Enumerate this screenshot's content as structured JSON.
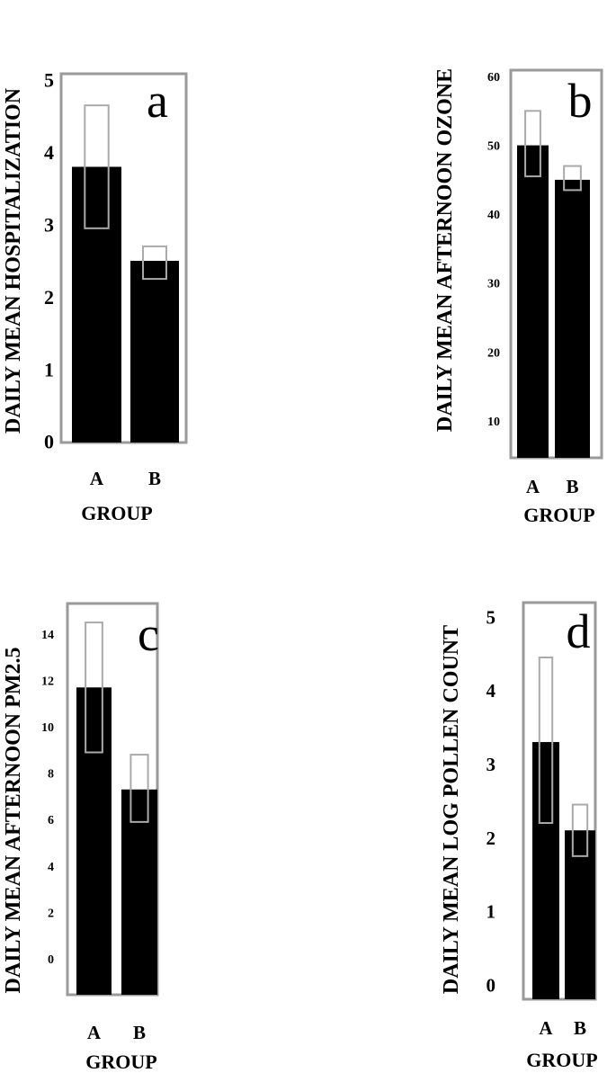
{
  "chart_data": [
    {
      "type": "bar",
      "panel_label": "a",
      "ylabel": "DAILY MEAN HOSPITALIZATION",
      "xlabel": "GROUP",
      "categories": [
        "A",
        "B"
      ],
      "values": [
        3.8,
        2.5
      ],
      "error_ranges": [
        [
          2.95,
          4.65
        ],
        [
          2.25,
          2.7
        ]
      ],
      "yticks": [
        "0",
        "1",
        "2",
        "3",
        "4",
        "5"
      ],
      "ylim": [
        0,
        5
      ]
    },
    {
      "type": "bar",
      "panel_label": "b",
      "ylabel": "DAILY MEAN AFTERNOON OZONE",
      "xlabel": "GROUP",
      "categories": [
        "A",
        "B"
      ],
      "values": [
        50,
        45
      ],
      "error_ranges": [
        [
          45.5,
          55
        ],
        [
          43.5,
          47
        ]
      ],
      "yticks": [
        "10",
        "20",
        "30",
        "40",
        "50",
        "60"
      ],
      "ylim": [
        5,
        60
      ]
    },
    {
      "type": "bar",
      "panel_label": "c",
      "ylabel": "DAILY MEAN AFTERNOON PM2.5",
      "xlabel": "GROUP",
      "categories": [
        "A",
        "B"
      ],
      "values": [
        11.7,
        7.3
      ],
      "error_ranges": [
        [
          8.9,
          14.5
        ],
        [
          5.9,
          8.8
        ]
      ],
      "yticks": [
        "0",
        "2",
        "4",
        "6",
        "8",
        "10",
        "12",
        "14"
      ],
      "ylim": [
        -1.5,
        15
      ]
    },
    {
      "type": "bar",
      "panel_label": "d",
      "ylabel": "DAILY MEAN  LOG POLLEN COUNT",
      "xlabel": "GROUP",
      "categories": [
        "A",
        "B"
      ],
      "values": [
        3.3,
        2.1
      ],
      "error_ranges": [
        [
          2.2,
          4.45
        ],
        [
          1.75,
          2.45
        ]
      ],
      "yticks": [
        "0",
        "1",
        "2",
        "3",
        "4",
        "5"
      ],
      "ylim": [
        -0.2,
        5.3
      ]
    }
  ]
}
